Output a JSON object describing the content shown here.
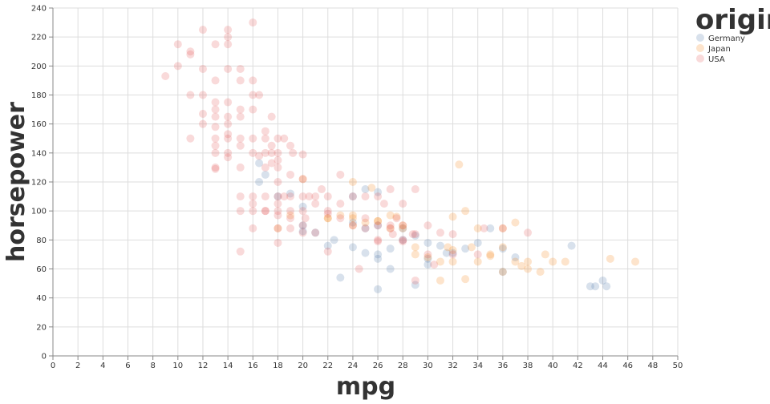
{
  "chart_data": {
    "type": "scatter",
    "xlabel": "mpg",
    "ylabel": "horsepower",
    "xlim": [
      0,
      50
    ],
    "ylim": [
      0,
      240
    ],
    "xticks": [
      0,
      2,
      4,
      6,
      8,
      10,
      12,
      14,
      16,
      18,
      20,
      22,
      24,
      26,
      28,
      30,
      32,
      34,
      36,
      38,
      40,
      42,
      44,
      46,
      48,
      50
    ],
    "yticks": [
      0,
      20,
      40,
      60,
      80,
      100,
      120,
      140,
      160,
      180,
      200,
      220,
      240
    ],
    "grid": true,
    "legend": {
      "title": "origin",
      "position": "top-right"
    },
    "series": [
      {
        "name": "Germany",
        "color": "#4c78a8",
        "points": [
          [
            16.5,
            133
          ],
          [
            17,
            125
          ],
          [
            16.5,
            120
          ],
          [
            18,
            110
          ],
          [
            19,
            112
          ],
          [
            20,
            103
          ],
          [
            20,
            90
          ],
          [
            20,
            86
          ],
          [
            22,
            76
          ],
          [
            23,
            54
          ],
          [
            24,
            75
          ],
          [
            24,
            110
          ],
          [
            25,
            115
          ],
          [
            25,
            71
          ],
          [
            26,
            113
          ],
          [
            26,
            46
          ],
          [
            26,
            67
          ],
          [
            26,
            70
          ],
          [
            27,
            60
          ],
          [
            28,
            80
          ],
          [
            29,
            83
          ],
          [
            29,
            49
          ],
          [
            30,
            67
          ],
          [
            30,
            78
          ],
          [
            31,
            76
          ],
          [
            32,
            71
          ],
          [
            33,
            74
          ],
          [
            34,
            78
          ],
          [
            35,
            88
          ],
          [
            36,
            58
          ],
          [
            36,
            74
          ],
          [
            37,
            68
          ],
          [
            41.5,
            76
          ],
          [
            43,
            48
          ],
          [
            43.4,
            48
          ],
          [
            44,
            52
          ],
          [
            44.3,
            48
          ],
          [
            25,
            88
          ],
          [
            21,
            85
          ],
          [
            22.5,
            80
          ],
          [
            31.5,
            71
          ],
          [
            27,
            74
          ],
          [
            30,
            63
          ],
          [
            26,
            90
          ],
          [
            28,
            88
          ],
          [
            24,
            92
          ]
        ]
      },
      {
        "name": "Japan",
        "color": "#f58518",
        "points": [
          [
            18,
            88
          ],
          [
            19,
            97
          ],
          [
            20,
            122
          ],
          [
            22,
            95
          ],
          [
            23,
            97
          ],
          [
            24,
            97
          ],
          [
            24,
            95
          ],
          [
            24,
            120
          ],
          [
            25,
            92
          ],
          [
            25.5,
            116
          ],
          [
            26,
            93
          ],
          [
            27,
            97
          ],
          [
            27.5,
            96
          ],
          [
            28,
            90
          ],
          [
            29,
            75
          ],
          [
            30,
            68
          ],
          [
            31,
            65
          ],
          [
            31,
            52
          ],
          [
            32,
            65
          ],
          [
            32,
            96
          ],
          [
            32.5,
            132
          ],
          [
            33,
            53
          ],
          [
            33,
            100
          ],
          [
            34,
            65
          ],
          [
            34,
            88
          ],
          [
            35,
            69
          ],
          [
            36,
            58
          ],
          [
            36,
            88
          ],
          [
            37,
            92
          ],
          [
            37,
            65
          ],
          [
            38,
            65
          ],
          [
            38,
            60
          ],
          [
            39,
            58
          ],
          [
            40,
            65
          ],
          [
            41,
            65
          ],
          [
            44.6,
            67
          ],
          [
            46.6,
            65
          ],
          [
            29,
            70
          ],
          [
            31.6,
            75
          ],
          [
            33.5,
            75
          ],
          [
            32,
            73
          ],
          [
            24,
            90
          ],
          [
            27,
            88
          ],
          [
            28,
            88
          ],
          [
            26,
            93
          ],
          [
            22,
            95
          ],
          [
            35,
            70
          ],
          [
            36,
            75
          ],
          [
            37.5,
            62
          ],
          [
            39.4,
            70
          ]
        ]
      },
      {
        "name": "USA",
        "color": "#e45756",
        "points": [
          [
            9,
            193
          ],
          [
            10,
            215
          ],
          [
            10,
            200
          ],
          [
            11,
            210
          ],
          [
            11,
            208
          ],
          [
            11,
            180
          ],
          [
            11,
            150
          ],
          [
            12,
            225
          ],
          [
            12,
            198
          ],
          [
            12,
            180
          ],
          [
            12,
            167
          ],
          [
            12,
            160
          ],
          [
            13,
            215
          ],
          [
            13,
            190
          ],
          [
            13,
            175
          ],
          [
            13,
            170
          ],
          [
            13,
            165
          ],
          [
            13,
            158
          ],
          [
            13,
            150
          ],
          [
            13,
            145
          ],
          [
            13,
            140
          ],
          [
            13,
            130
          ],
          [
            13,
            129
          ],
          [
            14,
            225
          ],
          [
            14,
            220
          ],
          [
            14,
            215
          ],
          [
            14,
            198
          ],
          [
            14,
            175
          ],
          [
            14,
            165
          ],
          [
            14,
            160
          ],
          [
            14,
            153
          ],
          [
            14,
            150
          ],
          [
            14,
            140
          ],
          [
            14,
            137
          ],
          [
            15,
            198
          ],
          [
            15,
            190
          ],
          [
            15,
            170
          ],
          [
            15,
            165
          ],
          [
            15,
            150
          ],
          [
            15,
            145
          ],
          [
            15,
            130
          ],
          [
            15,
            110
          ],
          [
            15,
            100
          ],
          [
            15,
            72
          ],
          [
            16,
            230
          ],
          [
            16,
            190
          ],
          [
            16,
            180
          ],
          [
            16,
            170
          ],
          [
            16,
            150
          ],
          [
            16,
            140
          ],
          [
            16,
            110
          ],
          [
            16,
            105
          ],
          [
            16,
            100
          ],
          [
            16,
            88
          ],
          [
            16.5,
            180
          ],
          [
            16.5,
            138
          ],
          [
            17,
            155
          ],
          [
            17,
            150
          ],
          [
            17,
            140
          ],
          [
            17,
            130
          ],
          [
            17,
            110
          ],
          [
            17,
            100
          ],
          [
            17.5,
            165
          ],
          [
            17.5,
            145
          ],
          [
            17.5,
            140
          ],
          [
            17.5,
            133
          ],
          [
            18,
            150
          ],
          [
            18,
            140
          ],
          [
            18,
            135
          ],
          [
            18,
            130
          ],
          [
            18,
            120
          ],
          [
            18,
            110
          ],
          [
            18,
            105
          ],
          [
            18,
            100
          ],
          [
            18,
            97
          ],
          [
            18,
            88
          ],
          [
            18,
            78
          ],
          [
            18.5,
            150
          ],
          [
            18.5,
            110
          ],
          [
            19,
            145
          ],
          [
            19,
            125
          ],
          [
            19,
            110
          ],
          [
            19,
            100
          ],
          [
            19,
            95
          ],
          [
            19,
            88
          ],
          [
            19.2,
            140
          ],
          [
            20,
            139
          ],
          [
            20,
            122
          ],
          [
            20,
            110
          ],
          [
            20,
            100
          ],
          [
            20,
            90
          ],
          [
            20,
            85
          ],
          [
            20.2,
            95
          ],
          [
            20.5,
            110
          ],
          [
            21,
            110
          ],
          [
            21,
            105
          ],
          [
            21,
            85
          ],
          [
            21.5,
            115
          ],
          [
            22,
            110
          ],
          [
            22,
            100
          ],
          [
            22,
            98
          ],
          [
            22,
            72
          ],
          [
            23,
            125
          ],
          [
            23,
            105
          ],
          [
            23,
            95
          ],
          [
            24,
            110
          ],
          [
            24,
            90
          ],
          [
            24.5,
            60
          ],
          [
            25,
            110
          ],
          [
            25,
            95
          ],
          [
            25,
            88
          ],
          [
            26,
            110
          ],
          [
            26,
            90
          ],
          [
            26,
            79
          ],
          [
            26.5,
            105
          ],
          [
            27,
            115
          ],
          [
            27,
            90
          ],
          [
            27,
            88
          ],
          [
            27.5,
            95
          ],
          [
            28,
            105
          ],
          [
            28,
            90
          ],
          [
            28,
            80
          ],
          [
            28,
            79
          ],
          [
            29,
            115
          ],
          [
            29,
            52
          ],
          [
            29,
            84
          ],
          [
            30,
            90
          ],
          [
            30,
            70
          ],
          [
            31,
            85
          ],
          [
            32,
            84
          ],
          [
            32,
            70
          ],
          [
            34,
            70
          ],
          [
            34.5,
            88
          ],
          [
            36,
            88
          ],
          [
            38,
            85
          ],
          [
            26,
            80
          ],
          [
            27.2,
            84
          ],
          [
            28.8,
            84
          ],
          [
            30.5,
            63
          ],
          [
            17,
            100
          ]
        ]
      }
    ]
  }
}
